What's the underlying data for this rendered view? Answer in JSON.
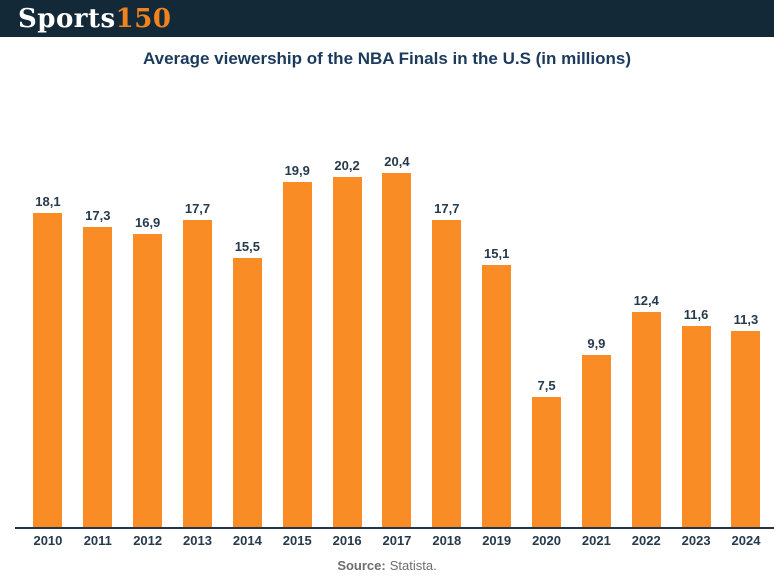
{
  "header": {
    "background": "#132938",
    "logo": {
      "text_primary": "Sports",
      "text_accent": "150",
      "accent_color": "#ef8320"
    }
  },
  "chart_data": {
    "type": "bar",
    "title": "Average viewership of the NBA Finals in the U.S (in millions)",
    "xlabel": "",
    "ylabel": "",
    "categories": [
      "2010",
      "2011",
      "2012",
      "2013",
      "2014",
      "2015",
      "2016",
      "2017",
      "2018",
      "2019",
      "2020",
      "2021",
      "2022",
      "2023",
      "2024"
    ],
    "values": [
      18.1,
      17.3,
      16.9,
      17.7,
      15.5,
      19.9,
      20.2,
      20.4,
      17.7,
      15.1,
      7.5,
      9.9,
      12.4,
      11.6,
      11.3
    ],
    "value_labels": [
      "18,1",
      "17,3",
      "16,9",
      "17,7",
      "15,5",
      "19,9",
      "20,2",
      "20,4",
      "17,7",
      "15,1",
      "7,5",
      "9,9",
      "12,4",
      "11,6",
      "11,3"
    ],
    "ylim": [
      0,
      21
    ],
    "grid": false,
    "legend": false,
    "bar_color": "#fa8c25",
    "label_color": "#263a4d",
    "axis_line_color": "#22364a",
    "title_color": "#1c3a5c"
  },
  "footer": {
    "source_prefix": "Source:",
    "source_name": "Statista."
  }
}
